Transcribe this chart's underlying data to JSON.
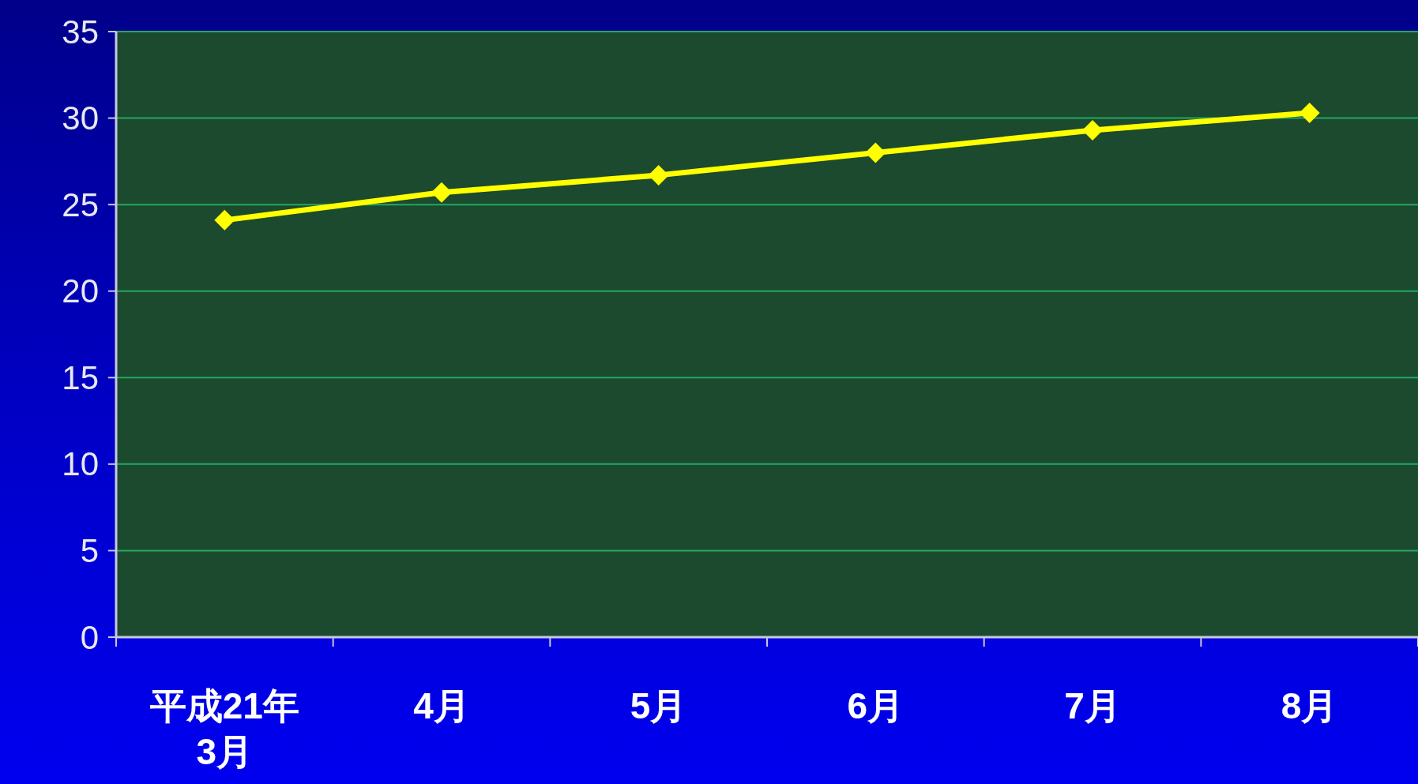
{
  "chart_data": {
    "type": "line",
    "categories": [
      "平成21年\n3月",
      "4月",
      "5月",
      "6月",
      "7月",
      "8月"
    ],
    "series": [
      {
        "color": "#ffff00",
        "values": [
          24.1,
          25.7,
          26.7,
          28.0,
          29.3,
          30.3
        ]
      }
    ],
    "ylim": [
      0,
      35
    ],
    "yticks": [
      0,
      5,
      10,
      15,
      20,
      25,
      30,
      35
    ],
    "grid": "y",
    "marker": "diamond",
    "line_style": "solid"
  }
}
